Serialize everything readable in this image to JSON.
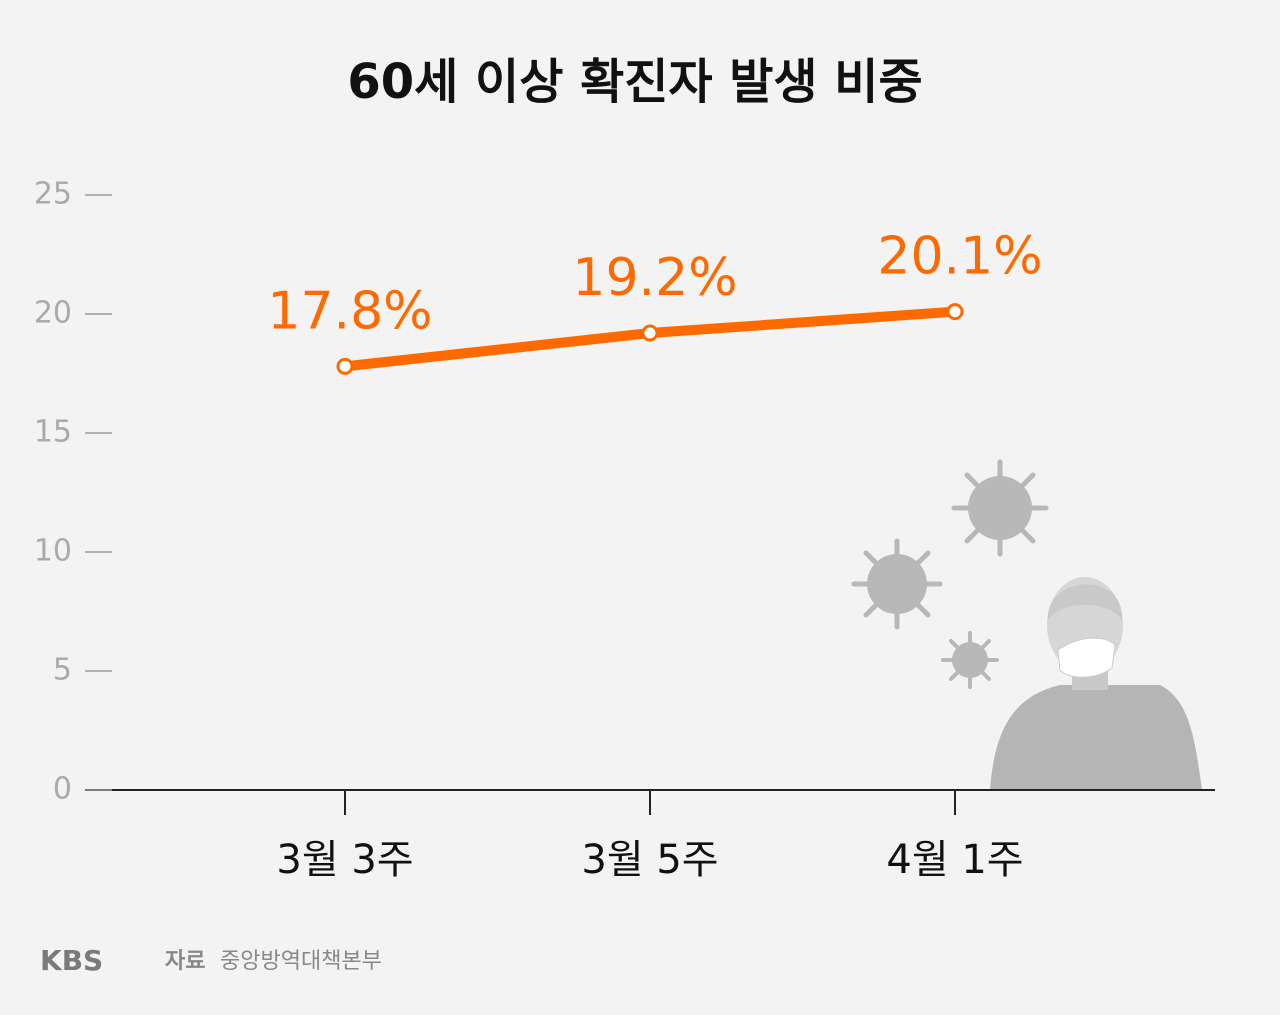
{
  "chart_data": {
    "type": "line",
    "title": "60세 이상 확진자 발생 비중",
    "categories": [
      "3월 3주",
      "3월 5주",
      "4월 1주"
    ],
    "values": [
      17.8,
      19.2,
      20.1
    ],
    "value_labels": [
      "17.8%",
      "19.2%",
      "20.1%"
    ],
    "color": "#ff6a00",
    "ylim": [
      0,
      25
    ],
    "yticks": [
      0,
      5,
      10,
      15,
      20,
      25
    ]
  },
  "source": {
    "logo": "KBS",
    "label": "자료",
    "text": "중앙방역대책본부"
  }
}
